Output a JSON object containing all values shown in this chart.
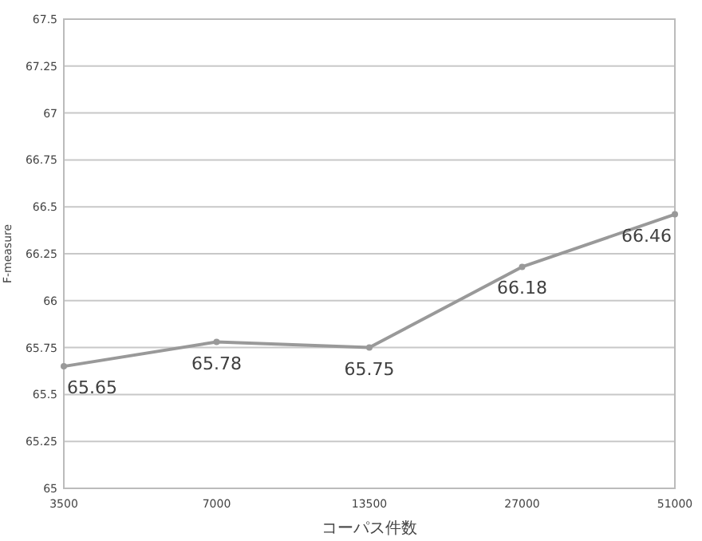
{
  "chart_data": {
    "type": "line",
    "xlabel": "コーパス件数",
    "ylabel": "F-measure",
    "categories": [
      "3500",
      "7000",
      "13500",
      "27000",
      "51000"
    ],
    "series": [
      {
        "color": "#999999",
        "values": [
          65.65,
          65.78,
          65.75,
          66.18,
          66.46
        ]
      }
    ],
    "ylim": [
      65,
      67.5
    ],
    "yticks": [
      65,
      65.25,
      65.5,
      65.75,
      66,
      66.25,
      66.5,
      66.75,
      67,
      67.25,
      67.5
    ],
    "grid": "y",
    "marker": "circle",
    "line_style": "solid",
    "data_labels": true
  }
}
